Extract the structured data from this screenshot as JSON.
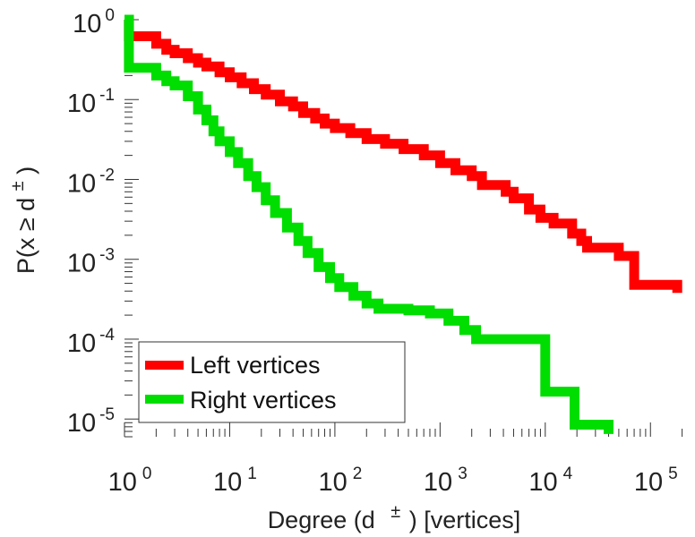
{
  "chart_data": {
    "type": "line",
    "step": true,
    "xscale": "log",
    "yscale": "log",
    "xlim": [
      1,
      250000
    ],
    "ylim": [
      6e-06,
      1
    ],
    "xlabel": {
      "pre": "Degree (d",
      "sup": "±",
      "post": ") [vertices]"
    },
    "ylabel": {
      "pre": "P(x ≥ d",
      "sup": "±",
      "post": ")"
    },
    "x_ticks": [
      {
        "base": "10",
        "exp": "0",
        "value": 1
      },
      {
        "base": "10",
        "exp": "1",
        "value": 10
      },
      {
        "base": "10",
        "exp": "2",
        "value": 100
      },
      {
        "base": "10",
        "exp": "3",
        "value": 1000
      },
      {
        "base": "10",
        "exp": "4",
        "value": 10000
      },
      {
        "base": "10",
        "exp": "5",
        "value": 100000
      }
    ],
    "y_ticks": [
      {
        "base": "10",
        "exp": "0",
        "value": 1
      },
      {
        "base": "10",
        "exp": "-1",
        "value": 0.1
      },
      {
        "base": "10",
        "exp": "-2",
        "value": 0.01
      },
      {
        "base": "10",
        "exp": "-3",
        "value": 0.001
      },
      {
        "base": "10",
        "exp": "-4",
        "value": 0.0001
      },
      {
        "base": "10",
        "exp": "-5",
        "value": 1e-05
      }
    ],
    "grid": false,
    "legend_position": "bottom-left",
    "series": [
      {
        "name": "Left vertices",
        "color": "#ff0000",
        "points": [
          [
            1,
            1
          ],
          [
            1.1,
            0.62
          ],
          [
            1.6,
            0.62
          ],
          [
            2,
            0.5
          ],
          [
            2.5,
            0.42
          ],
          [
            3,
            0.38
          ],
          [
            4,
            0.33
          ],
          [
            5,
            0.29
          ],
          [
            6,
            0.26
          ],
          [
            8,
            0.22
          ],
          [
            10,
            0.19
          ],
          [
            13,
            0.16
          ],
          [
            17,
            0.135
          ],
          [
            22,
            0.115
          ],
          [
            30,
            0.095
          ],
          [
            40,
            0.082
          ],
          [
            50,
            0.068
          ],
          [
            65,
            0.058
          ],
          [
            80,
            0.05
          ],
          [
            100,
            0.044
          ],
          [
            140,
            0.038
          ],
          [
            200,
            0.032
          ],
          [
            300,
            0.028
          ],
          [
            450,
            0.024
          ],
          [
            700,
            0.02
          ],
          [
            1000,
            0.016
          ],
          [
            1400,
            0.013
          ],
          [
            2000,
            0.011
          ],
          [
            2500,
            0.0085
          ],
          [
            3800,
            0.0085
          ],
          [
            4200,
            0.007
          ],
          [
            5000,
            0.0058
          ],
          [
            7000,
            0.0042
          ],
          [
            9000,
            0.0033
          ],
          [
            12000,
            0.0028
          ],
          [
            18000,
            0.0021
          ],
          [
            22000,
            0.0017
          ],
          [
            25000,
            0.0014
          ],
          [
            45000,
            0.0014
          ],
          [
            50000,
            0.0011
          ],
          [
            60000,
            0.0011
          ],
          [
            70000,
            0.00048
          ],
          [
            180000,
            0.00048
          ],
          [
            180000,
            0.00038
          ]
        ]
      },
      {
        "name": "Right vertices",
        "color": "#00dd00",
        "points": [
          [
            1,
            1
          ],
          [
            1.1,
            0.25
          ],
          [
            1.6,
            0.25
          ],
          [
            2,
            0.2
          ],
          [
            2.5,
            0.17
          ],
          [
            3,
            0.15
          ],
          [
            4,
            0.11
          ],
          [
            5,
            0.075
          ],
          [
            6,
            0.055
          ],
          [
            7,
            0.04
          ],
          [
            8,
            0.03
          ],
          [
            10,
            0.022
          ],
          [
            12,
            0.016
          ],
          [
            15,
            0.011
          ],
          [
            18,
            0.008
          ],
          [
            22,
            0.0055
          ],
          [
            27,
            0.0038
          ],
          [
            35,
            0.0025
          ],
          [
            45,
            0.0017
          ],
          [
            55,
            0.0012
          ],
          [
            70,
            0.0008
          ],
          [
            90,
            0.00058
          ],
          [
            110,
            0.00045
          ],
          [
            150,
            0.00035
          ],
          [
            200,
            0.00028
          ],
          [
            260,
            0.00024
          ],
          [
            500,
            0.00023
          ],
          [
            800,
            0.00021
          ],
          [
            1200,
            0.00017
          ],
          [
            1700,
            0.00013
          ],
          [
            2200,
            0.0001
          ],
          [
            10000,
            0.0001
          ],
          [
            10000,
            2.2e-05
          ],
          [
            19000,
            2.2e-05
          ],
          [
            19000,
            8.5e-06
          ],
          [
            40000,
            8.5e-06
          ],
          [
            40000,
            6.5e-06
          ]
        ]
      }
    ]
  }
}
